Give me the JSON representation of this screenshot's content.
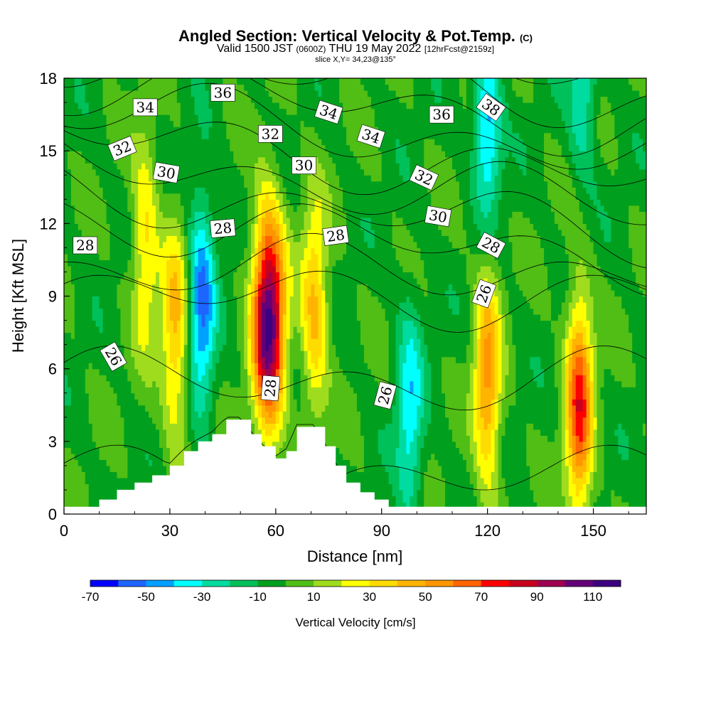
{
  "title": {
    "main": "Angled Section: Vertical Velocity & Pot.Temp.",
    "main_unit": "(C)",
    "valid_prefix": "Valid 1500 JST",
    "valid_utc": "(0600Z)",
    "valid_date": "THU 19 May 2022",
    "forecast": "[12hrFcst@2159z]",
    "slice": "slice X,Y= 34,23@135°"
  },
  "chart_data": {
    "type": "heatmap",
    "xlabel": "Distance [nm]",
    "ylabel": "Height [Kft MSL]",
    "xlim": [
      0,
      165
    ],
    "ylim": [
      0,
      18
    ],
    "xticks": [
      0,
      30,
      60,
      90,
      120,
      150
    ],
    "yticks": [
      0,
      3,
      6,
      9,
      12,
      15,
      18
    ],
    "colorbar": {
      "label": "Vertical Velocity [cm/s]",
      "range": [
        -70,
        120
      ],
      "step": 10,
      "tick_labels": [
        "-70",
        "-50",
        "-30",
        "-10",
        "10",
        "30",
        "50",
        "70",
        "90",
        "110"
      ],
      "colors": [
        "#0000ff",
        "#1e64ff",
        "#00a0ff",
        "#00ffff",
        "#00dca0",
        "#00c05a",
        "#00a01e",
        "#50be14",
        "#a0dc1e",
        "#ffff00",
        "#ffdc00",
        "#ffb400",
        "#ff9600",
        "#ff6400",
        "#ff0000",
        "#c8001e",
        "#a00050",
        "#640078",
        "#3c0080"
      ]
    },
    "velocity_cores": [
      {
        "x": 23,
        "z": 11.2,
        "w": 35
      },
      {
        "x": 31.5,
        "z": 7.5,
        "w": 45
      },
      {
        "x": 39,
        "z": 8.8,
        "w": -50
      },
      {
        "x": 58,
        "z": 8.0,
        "w": 115
      },
      {
        "x": 71,
        "z": 8.5,
        "w": 45
      },
      {
        "x": 98,
        "z": 4.2,
        "w": -35
      },
      {
        "x": 120,
        "z": 5.5,
        "w": 55
      },
      {
        "x": 146,
        "z": 4.5,
        "w": 75
      },
      {
        "x": 120,
        "z": 16.0,
        "w": -45
      },
      {
        "x": 147,
        "z": 17.5,
        "w": -30
      }
    ],
    "terrain_kft": [
      [
        0,
        0.3
      ],
      [
        10,
        0.6
      ],
      [
        15,
        1.0
      ],
      [
        20,
        1.3
      ],
      [
        25,
        1.6
      ],
      [
        30,
        2.0
      ],
      [
        34,
        2.6
      ],
      [
        38,
        3.0
      ],
      [
        42,
        3.3
      ],
      [
        46,
        3.9
      ],
      [
        50,
        3.9
      ],
      [
        53,
        3.3
      ],
      [
        56,
        2.8
      ],
      [
        60,
        2.3
      ],
      [
        63,
        2.6
      ],
      [
        66,
        3.6
      ],
      [
        71,
        3.6
      ],
      [
        74,
        2.8
      ],
      [
        77,
        2.0
      ],
      [
        80,
        1.3
      ],
      [
        84,
        0.9
      ],
      [
        88,
        0.6
      ],
      [
        92,
        0.3
      ],
      [
        165,
        0.3
      ]
    ],
    "isentropes_c": [
      26,
      27,
      28,
      29,
      30,
      31,
      32,
      33,
      34,
      35,
      36,
      37,
      38
    ],
    "contour_labels": [
      {
        "text": "34",
        "x": 23,
        "z": 16.8,
        "angle": 0
      },
      {
        "text": "36",
        "x": 45,
        "z": 17.4,
        "angle": 0
      },
      {
        "text": "32",
        "x": 16.5,
        "z": 15.1,
        "angle": -22
      },
      {
        "text": "32",
        "x": 58.5,
        "z": 15.7,
        "angle": 0
      },
      {
        "text": "34",
        "x": 75,
        "z": 16.6,
        "angle": 18
      },
      {
        "text": "34",
        "x": 87,
        "z": 15.6,
        "angle": 18
      },
      {
        "text": "36",
        "x": 107,
        "z": 16.5,
        "angle": 0
      },
      {
        "text": "38",
        "x": 121,
        "z": 16.8,
        "angle": 35
      },
      {
        "text": "30",
        "x": 29,
        "z": 14.1,
        "angle": 10
      },
      {
        "text": "30",
        "x": 68,
        "z": 14.4,
        "angle": 0
      },
      {
        "text": "32",
        "x": 102,
        "z": 13.9,
        "angle": 25
      },
      {
        "text": "30",
        "x": 106,
        "z": 12.3,
        "angle": 10
      },
      {
        "text": "28",
        "x": 6,
        "z": 11.1,
        "angle": 0
      },
      {
        "text": "28",
        "x": 45,
        "z": 11.8,
        "angle": -5
      },
      {
        "text": "28",
        "x": 77,
        "z": 11.5,
        "angle": -8
      },
      {
        "text": "28",
        "x": 121,
        "z": 11.1,
        "angle": 28
      },
      {
        "text": "26",
        "x": 119,
        "z": 9.1,
        "angle": -70
      },
      {
        "text": "26",
        "x": 14,
        "z": 6.5,
        "angle": 60
      },
      {
        "text": "28",
        "x": 58.5,
        "z": 5.2,
        "angle": -85
      },
      {
        "text": "26",
        "x": 91,
        "z": 4.9,
        "angle": -75
      }
    ]
  }
}
